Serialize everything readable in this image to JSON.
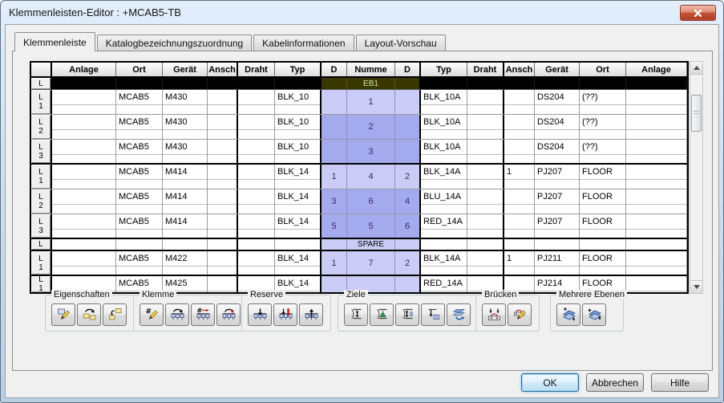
{
  "window": {
    "title": "Klemmenleisten-Editor : +MCAB5-TB"
  },
  "icons": {
    "close": "close-icon",
    "scroll_up": "scroll-up-icon",
    "scroll_down": "scroll-down-icon"
  },
  "tabs": [
    {
      "name": "klemmenleiste",
      "label": "Klemmenleiste",
      "active": true
    },
    {
      "name": "katalogbezeichnungszuordnung",
      "label": "Katalogbezeichnungszuordnung",
      "active": false
    },
    {
      "name": "kabelinformationen",
      "label": "Kabelinformationen",
      "active": false
    },
    {
      "name": "layout-vorschau",
      "label": "Layout-Vorschau",
      "active": false
    }
  ],
  "table": {
    "headers": [
      "",
      "Anlage",
      "Ort",
      "Gerät",
      "Ansch",
      "Draht",
      "Typ",
      "D",
      "Numme",
      "D",
      "Typ",
      "Draht",
      "Ansch",
      "Gerät",
      "Ort",
      "Anlage"
    ],
    "rows": [
      {
        "kind": "strip",
        "rowhdr": "L",
        "nummer": "EB1"
      },
      {
        "kind": "terminal",
        "shade": "light",
        "rowhdr": [
          "L",
          "1"
        ],
        "left": [
          "",
          "MCAB5",
          "M430",
          "",
          "",
          "BLK_10"
        ],
        "mid": [
          "",
          "1",
          ""
        ],
        "right": [
          "BLK_10A",
          "",
          "",
          "DS204",
          "(??)",
          ""
        ]
      },
      {
        "kind": "terminal",
        "shade": "dark",
        "rowhdr": [
          "L",
          "2"
        ],
        "left": [
          "",
          "MCAB5",
          "M430",
          "",
          "",
          "BLK_10"
        ],
        "mid": [
          "",
          "2",
          ""
        ],
        "right": [
          "BLK_10A",
          "",
          "",
          "DS204",
          "(??)",
          ""
        ]
      },
      {
        "kind": "terminal",
        "shade": "dark",
        "rowhdr": [
          "L",
          "3"
        ],
        "left": [
          "",
          "MCAB5",
          "M430",
          "",
          "",
          "BLK_10"
        ],
        "mid": [
          "",
          "3",
          ""
        ],
        "right": [
          "BLK_10A",
          "",
          "",
          "DS204",
          "(??)",
          ""
        ],
        "groupEnd": true
      },
      {
        "kind": "terminal",
        "shade": "light",
        "rowhdr": [
          "L",
          "1"
        ],
        "left": [
          "",
          "MCAB5",
          "M414",
          "",
          "",
          "BLK_14"
        ],
        "mid": [
          "1",
          "4",
          "2"
        ],
        "right": [
          "BLK_14A",
          "",
          "1",
          "PJ207",
          "FLOOR",
          ""
        ]
      },
      {
        "kind": "terminal",
        "shade": "dark",
        "rowhdr": [
          "L",
          "2"
        ],
        "left": [
          "",
          "MCAB5",
          "M414",
          "",
          "",
          "BLK_14"
        ],
        "mid": [
          "3",
          "6",
          "4"
        ],
        "right": [
          "BLU_14A",
          "",
          "",
          "PJ207",
          "FLOOR",
          ""
        ]
      },
      {
        "kind": "terminal",
        "shade": "dark",
        "rowhdr": [
          "L",
          "3"
        ],
        "left": [
          "",
          "MCAB5",
          "M414",
          "",
          "",
          "BLK_14"
        ],
        "mid": [
          "5",
          "5",
          "6"
        ],
        "right": [
          "RED_14A",
          "",
          "",
          "PJ207",
          "FLOOR",
          ""
        ],
        "groupEnd": true
      },
      {
        "kind": "spare",
        "rowhdr": "L",
        "nummer": "SPARE"
      },
      {
        "kind": "terminal",
        "shade": "light",
        "rowhdr": [
          "L",
          "1"
        ],
        "left": [
          "",
          "MCAB5",
          "M422",
          "",
          "",
          "BLK_14"
        ],
        "mid": [
          "1",
          "7",
          "2"
        ],
        "right": [
          "BLK_14A",
          "",
          "1",
          "PJ211",
          "FLOOR",
          ""
        ],
        "groupEnd": true
      },
      {
        "kind": "terminal",
        "shade": "light",
        "rowhdr": [
          "L",
          "1"
        ],
        "left": [
          "",
          "MCAB5",
          "M425",
          "",
          "",
          "BLK_14"
        ],
        "mid": [
          "",
          "",
          ""
        ],
        "right": [
          "RED_14A",
          "",
          "",
          "PJ214",
          "FLOOR",
          ""
        ],
        "clipped": true
      }
    ]
  },
  "toolbox": {
    "groups": [
      {
        "label": "Eigenschaften",
        "buttons": [
          "edit-properties-icon",
          "copy-properties-icon",
          "transfer-properties-icon"
        ]
      },
      {
        "label": "Klemme",
        "buttons": [
          "renumber-terminal-icon",
          "move-terminal-icon",
          "renumber-sequence-icon",
          "reverse-terminals-icon"
        ]
      },
      {
        "label": "Reserve",
        "buttons": [
          "insert-spare-icon",
          "insert-spare-marker-icon",
          "remove-spare-icon"
        ]
      },
      {
        "label": "Ziele",
        "buttons": [
          "align-targets-icon",
          "align-targets-up-icon",
          "assign-targets-icon",
          "move-target-icon",
          "update-targets-icon"
        ]
      },
      {
        "label": "Brücken",
        "buttons": [
          "insert-bridge-icon",
          "edit-bridge-icon"
        ]
      },
      {
        "label": "Mehrere Ebenen",
        "buttons": [
          "add-level-up-icon",
          "add-level-down-icon"
        ]
      }
    ]
  },
  "footer": {
    "ok": "OK",
    "cancel": "Abbrechen",
    "help": "Hilfe"
  },
  "colors": {
    "level1_cell": "#cbccf6",
    "level23_cell": "#a4aaee",
    "strip_header_bg": "#383800",
    "strip_header_text": "#d6e8ac",
    "selected_row_bg": "#000000",
    "dialog_frame": "#cfdff0",
    "close_button": "#c4543a"
  }
}
